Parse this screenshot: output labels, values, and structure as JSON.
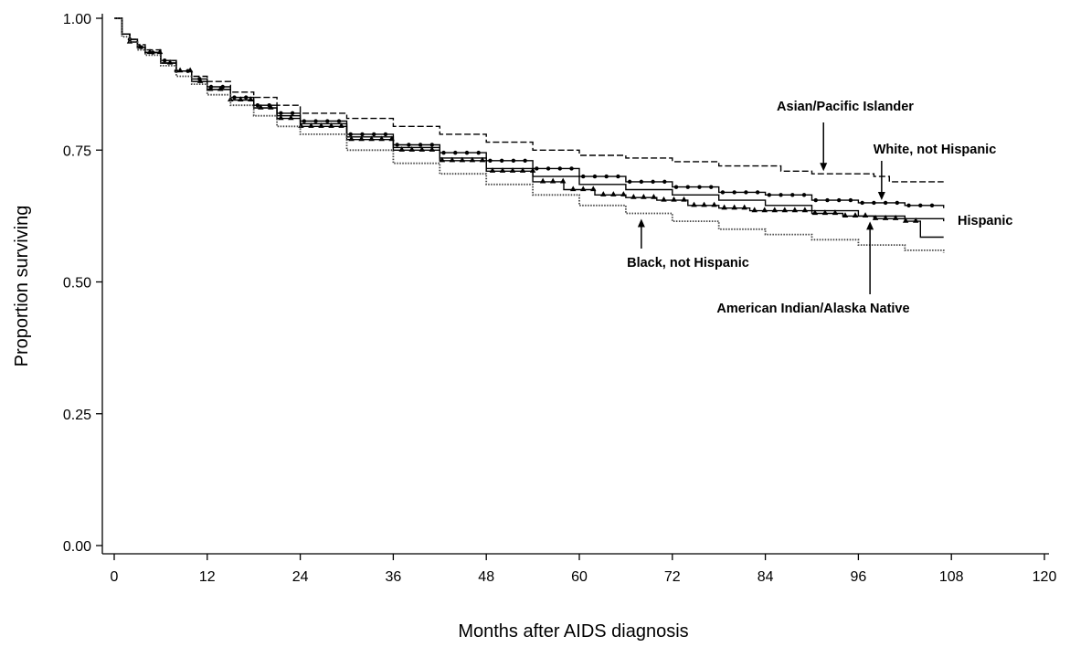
{
  "chart_data": {
    "type": "line",
    "title": "",
    "xlabel": "Months after AIDS diagnosis",
    "ylabel": "Proportion surviving",
    "xlim": [
      0,
      120
    ],
    "ylim": [
      0,
      1
    ],
    "xticks": [
      0,
      12,
      24,
      36,
      48,
      60,
      72,
      84,
      96,
      108,
      120
    ],
    "yticks": [
      0.0,
      0.25,
      0.5,
      0.75,
      1.0
    ],
    "xtick_labels": [
      "0",
      "12",
      "24",
      "36",
      "48",
      "60",
      "72",
      "84",
      "96",
      "108",
      "120"
    ],
    "ytick_labels": [
      "0.00",
      "0.25",
      "0.50",
      "0.75",
      "1.00"
    ],
    "grid": false,
    "legend": "none",
    "series": [
      {
        "name": "Asian/Pacific Islander",
        "style": "dashed",
        "color": "#000000",
        "x": [
          0,
          1,
          1,
          2,
          3,
          4,
          6,
          8,
          10,
          12,
          15,
          18,
          21,
          24,
          30,
          36,
          42,
          48,
          54,
          60,
          66,
          72,
          78,
          82,
          86,
          90,
          94,
          98,
          100,
          104,
          107
        ],
        "y": [
          1.0,
          1.0,
          0.97,
          0.96,
          0.95,
          0.94,
          0.92,
          0.9,
          0.89,
          0.88,
          0.86,
          0.85,
          0.835,
          0.82,
          0.81,
          0.795,
          0.78,
          0.765,
          0.75,
          0.74,
          0.735,
          0.728,
          0.72,
          0.72,
          0.71,
          0.705,
          0.705,
          0.7,
          0.69,
          0.69,
          0.69
        ]
      },
      {
        "name": "White, not Hispanic",
        "style": "solid-dots",
        "color": "#000000",
        "x": [
          0,
          1,
          1,
          2,
          3,
          4,
          6,
          8,
          10,
          12,
          15,
          18,
          21,
          24,
          30,
          36,
          42,
          48,
          54,
          60,
          66,
          72,
          78,
          84,
          90,
          96,
          102,
          107
        ],
        "y": [
          1.0,
          1.0,
          0.97,
          0.96,
          0.945,
          0.935,
          0.92,
          0.9,
          0.885,
          0.87,
          0.85,
          0.835,
          0.82,
          0.805,
          0.78,
          0.76,
          0.745,
          0.73,
          0.715,
          0.7,
          0.69,
          0.68,
          0.67,
          0.665,
          0.655,
          0.65,
          0.645,
          0.64
        ]
      },
      {
        "name": "Hispanic",
        "style": "solid",
        "color": "#000000",
        "x": [
          0,
          1,
          1,
          2,
          3,
          4,
          6,
          8,
          10,
          12,
          15,
          18,
          21,
          24,
          30,
          36,
          42,
          48,
          54,
          60,
          66,
          72,
          78,
          84,
          90,
          96,
          102,
          107
        ],
        "y": [
          1.0,
          1.0,
          0.97,
          0.96,
          0.945,
          0.935,
          0.915,
          0.9,
          0.88,
          0.865,
          0.845,
          0.83,
          0.815,
          0.8,
          0.775,
          0.755,
          0.735,
          0.715,
          0.7,
          0.685,
          0.675,
          0.665,
          0.655,
          0.645,
          0.635,
          0.625,
          0.62,
          0.615
        ]
      },
      {
        "name": "American Indian/Alaska Native",
        "style": "solid-triangles",
        "color": "#000000",
        "x": [
          0,
          1,
          1,
          2,
          3,
          4,
          6,
          8,
          10,
          12,
          15,
          18,
          21,
          24,
          30,
          36,
          42,
          48,
          54,
          58,
          62,
          66,
          70,
          74,
          78,
          82,
          86,
          90,
          94,
          98,
          102,
          104,
          104,
          107
        ],
        "y": [
          1.0,
          1.0,
          0.97,
          0.955,
          0.945,
          0.935,
          0.915,
          0.9,
          0.88,
          0.865,
          0.845,
          0.83,
          0.81,
          0.795,
          0.77,
          0.75,
          0.73,
          0.71,
          0.69,
          0.675,
          0.665,
          0.66,
          0.655,
          0.645,
          0.64,
          0.635,
          0.635,
          0.63,
          0.625,
          0.62,
          0.615,
          0.615,
          0.585,
          0.585
        ]
      },
      {
        "name": "Black, not Hispanic",
        "style": "dotted",
        "color": "#444444",
        "x": [
          0,
          1,
          1,
          2,
          3,
          4,
          6,
          8,
          10,
          12,
          15,
          18,
          21,
          24,
          30,
          36,
          42,
          48,
          54,
          60,
          66,
          72,
          78,
          84,
          90,
          96,
          102,
          107
        ],
        "y": [
          1.0,
          1.0,
          0.965,
          0.955,
          0.94,
          0.93,
          0.91,
          0.89,
          0.875,
          0.855,
          0.835,
          0.815,
          0.795,
          0.78,
          0.75,
          0.725,
          0.705,
          0.685,
          0.665,
          0.645,
          0.63,
          0.615,
          0.6,
          0.59,
          0.58,
          0.57,
          0.56,
          0.555
        ]
      }
    ],
    "annotations": [
      {
        "text": "Asian/Pacific Islander",
        "series": "Asian/Pacific Islander",
        "arrow_x": 91.5
      },
      {
        "text": "White, not Hispanic",
        "series": "White, not Hispanic",
        "arrow_x": 99
      },
      {
        "text": "Hispanic",
        "series": "Hispanic",
        "arrow_x": null
      },
      {
        "text": "Black, not Hispanic",
        "series": "Black, not Hispanic",
        "arrow_x": 68
      },
      {
        "text": "American Indian/Alaska Native",
        "series": "American Indian/Alaska Native",
        "arrow_x": 97.5
      }
    ]
  }
}
